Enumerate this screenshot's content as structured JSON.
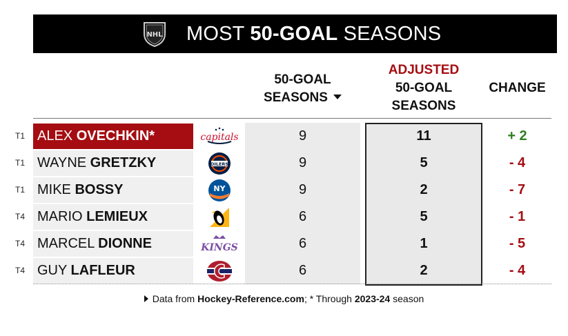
{
  "header": {
    "title_pre": "MOST ",
    "title_bold": "50-GOAL",
    "title_post": " SEASONS",
    "logo_icon": "nhl-shield-logo"
  },
  "columns": {
    "seasons_line1": "50-GOAL",
    "seasons_line2": "SEASONS",
    "adjusted_line1": "ADJUSTED",
    "adjusted_line2": "50-GOAL",
    "adjusted_line3": "SEASONS",
    "change": "CHANGE"
  },
  "colors": {
    "highlight": "#a50d12",
    "positive": "#2e7d1e",
    "negative": "#a50d12",
    "banner": "#000000"
  },
  "rows": [
    {
      "rank": "T1",
      "first": "ALEX ",
      "last": "OVECHKIN*",
      "team_icon": "capitals-logo",
      "seasons": "9",
      "adjusted": "11",
      "change": "+ 2",
      "highlight": true
    },
    {
      "rank": "T1",
      "first": "WAYNE ",
      "last": "GRETZKY",
      "team_icon": "oilers-logo",
      "seasons": "9",
      "adjusted": "5",
      "change": "- 4"
    },
    {
      "rank": "T1",
      "first": "MIKE ",
      "last": "BOSSY",
      "team_icon": "islanders-logo",
      "seasons": "9",
      "adjusted": "2",
      "change": "- 7"
    },
    {
      "rank": "T4",
      "first": "MARIO ",
      "last": "LEMIEUX",
      "team_icon": "penguins-logo",
      "seasons": "6",
      "adjusted": "5",
      "change": "- 1"
    },
    {
      "rank": "T4",
      "first": "MARCEL ",
      "last": "DIONNE",
      "team_icon": "kings-logo",
      "seasons": "6",
      "adjusted": "1",
      "change": "- 5"
    },
    {
      "rank": "T4",
      "first": "GUY ",
      "last": "LAFLEUR",
      "team_icon": "canadiens-logo",
      "seasons": "6",
      "adjusted": "2",
      "change": "- 4"
    }
  ],
  "footer": {
    "pre": "Data from ",
    "source": "Hockey-Reference.com",
    "mid": "; * Through ",
    "season": "2023-24",
    "post": " season"
  },
  "chart_data": {
    "type": "table",
    "title": "MOST 50-GOAL SEASONS",
    "columns": [
      "Player",
      "50-Goal Seasons",
      "Adjusted 50-Goal Seasons",
      "Change"
    ],
    "rows": [
      [
        "ALEX OVECHKIN*",
        9,
        11,
        2
      ],
      [
        "WAYNE GRETZKY",
        9,
        5,
        -4
      ],
      [
        "MIKE BOSSY",
        9,
        2,
        -7
      ],
      [
        "MARIO LEMIEUX",
        6,
        5,
        -1
      ],
      [
        "MARCEL DIONNE",
        6,
        1,
        -5
      ],
      [
        "GUY LAFLEUR",
        6,
        2,
        -4
      ]
    ]
  }
}
